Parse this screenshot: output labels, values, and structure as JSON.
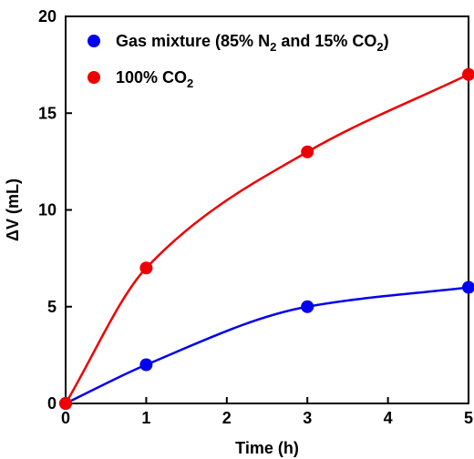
{
  "chart_data": {
    "type": "line",
    "xlabel": "Time (h)",
    "ylabel": "ΔV (mL)",
    "xlim": [
      0,
      5
    ],
    "ylim": [
      0,
      20
    ],
    "xticks": [
      "0",
      "1",
      "2",
      "3",
      "4",
      "5"
    ],
    "yticks": [
      "0",
      "5",
      "10",
      "15",
      "20"
    ],
    "grid": false,
    "legend_position": "top-left",
    "series": [
      {
        "name_parts": [
          "Gas mixture (85% N",
          "2",
          " and 15% CO",
          "2",
          ")"
        ],
        "color": "#0000ee",
        "x": [
          0,
          1,
          3,
          5
        ],
        "y": [
          0,
          2,
          5,
          6
        ]
      },
      {
        "name_parts": [
          "100% CO",
          "2"
        ],
        "color": "#ee0000",
        "x": [
          0,
          1,
          3,
          5
        ],
        "y": [
          0,
          7,
          13,
          17
        ]
      }
    ]
  }
}
